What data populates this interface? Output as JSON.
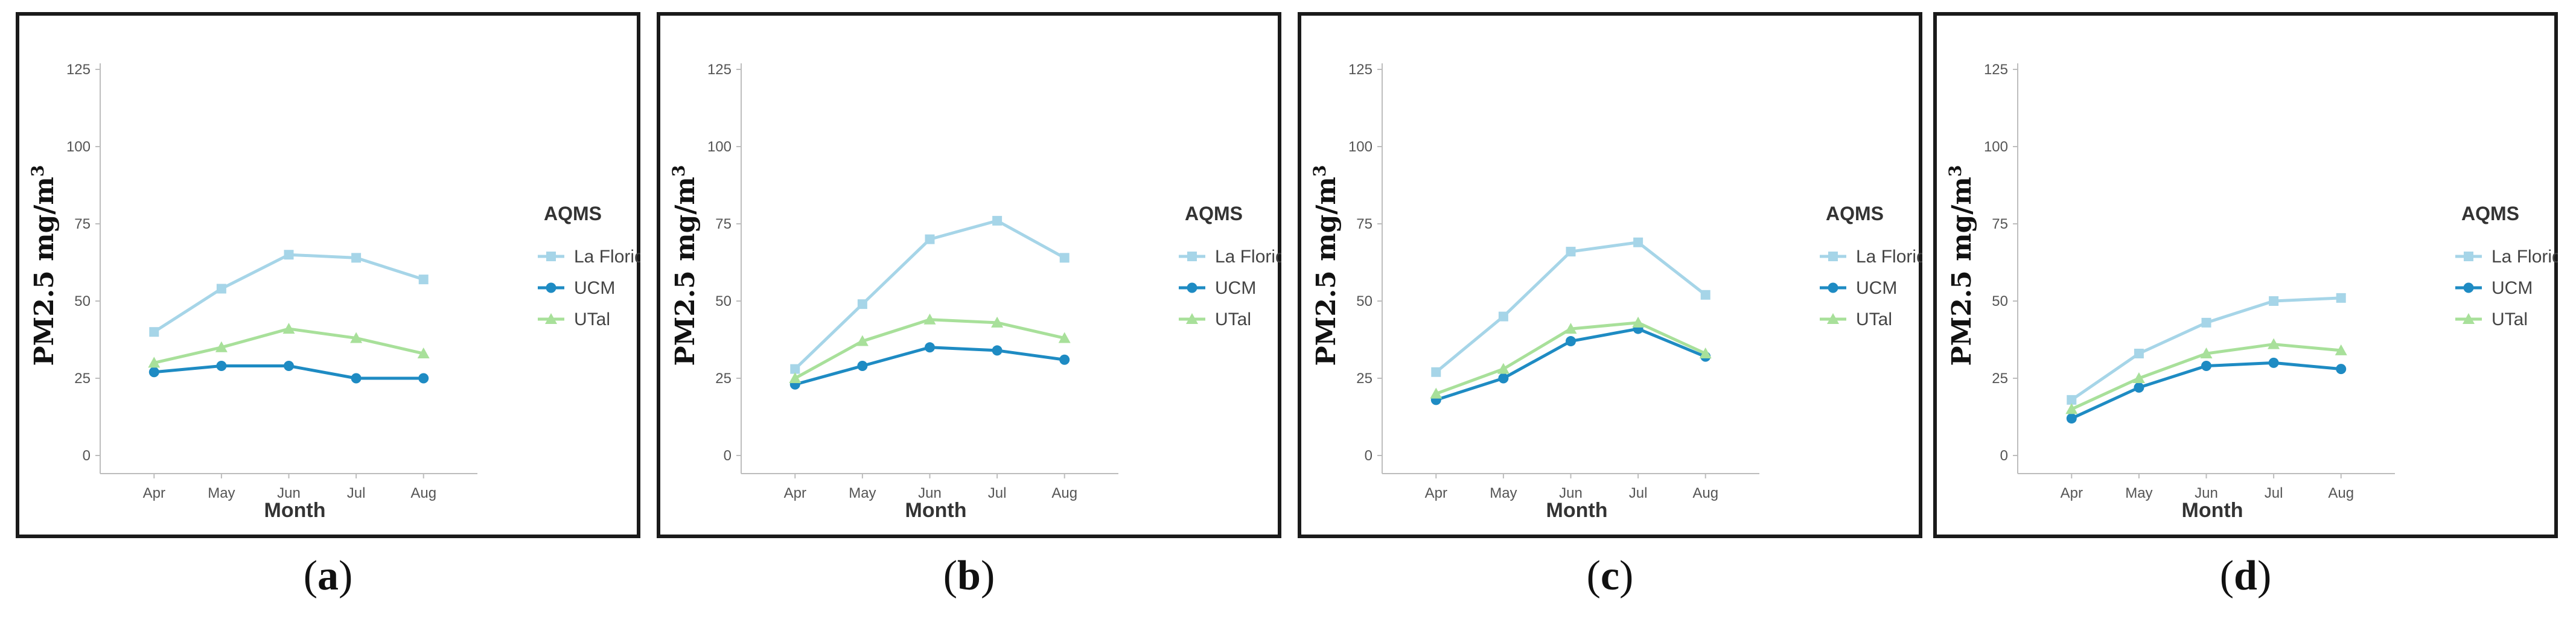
{
  "chart_data": [
    {
      "type": "line",
      "panel_label": "a",
      "ylabel": "PM2.5 mg/m",
      "ylabel_sup": "3",
      "xlabel": "Month",
      "categories": [
        "Apr",
        "May",
        "Jun",
        "Jul",
        "Aug"
      ],
      "yticks": [
        0,
        25,
        50,
        75,
        100,
        125
      ],
      "ylim": [
        0,
        125
      ],
      "legend": {
        "title": "AQMS",
        "position": "right"
      },
      "series": [
        {
          "name": "La Florida",
          "color": "#a6d5e8",
          "marker": "square",
          "values": [
            40,
            54,
            65,
            64,
            57
          ]
        },
        {
          "name": "UCM",
          "color": "#1e8bc3",
          "marker": "circle",
          "values": [
            27,
            29,
            29,
            25,
            25
          ]
        },
        {
          "name": "UTal",
          "color": "#a8e09a",
          "marker": "triangle",
          "values": [
            30,
            35,
            41,
            38,
            33
          ]
        }
      ]
    },
    {
      "type": "line",
      "panel_label": "b",
      "ylabel": "PM2.5 mg/m",
      "ylabel_sup": "3",
      "xlabel": "Month",
      "categories": [
        "Apr",
        "May",
        "Jun",
        "Jul",
        "Aug"
      ],
      "yticks": [
        0,
        25,
        50,
        75,
        100,
        125
      ],
      "ylim": [
        0,
        125
      ],
      "legend": {
        "title": "AQMS",
        "position": "right"
      },
      "series": [
        {
          "name": "La Florida",
          "color": "#a6d5e8",
          "marker": "square",
          "values": [
            28,
            49,
            70,
            76,
            64
          ]
        },
        {
          "name": "UCM",
          "color": "#1e8bc3",
          "marker": "circle",
          "values": [
            23,
            29,
            35,
            34,
            31
          ]
        },
        {
          "name": "UTal",
          "color": "#a8e09a",
          "marker": "triangle",
          "values": [
            25,
            37,
            44,
            43,
            38
          ]
        }
      ]
    },
    {
      "type": "line",
      "panel_label": "c",
      "ylabel": "PM2.5 mg/m",
      "ylabel_sup": "3",
      "xlabel": "Month",
      "categories": [
        "Apr",
        "May",
        "Jun",
        "Jul",
        "Aug"
      ],
      "yticks": [
        0,
        25,
        50,
        75,
        100,
        125
      ],
      "ylim": [
        0,
        125
      ],
      "legend": {
        "title": "AQMS",
        "position": "right"
      },
      "series": [
        {
          "name": "La Florida",
          "color": "#a6d5e8",
          "marker": "square",
          "values": [
            27,
            45,
            66,
            69,
            52
          ]
        },
        {
          "name": "UCM",
          "color": "#1e8bc3",
          "marker": "circle",
          "values": [
            18,
            25,
            37,
            41,
            32
          ]
        },
        {
          "name": "UTal",
          "color": "#a8e09a",
          "marker": "triangle",
          "values": [
            20,
            28,
            41,
            43,
            33
          ]
        }
      ]
    },
    {
      "type": "line",
      "panel_label": "d",
      "ylabel": "PM2.5 mg/m",
      "ylabel_sup": "3",
      "xlabel": "Month",
      "categories": [
        "Apr",
        "May",
        "Jun",
        "Jul",
        "Aug"
      ],
      "yticks": [
        0,
        25,
        50,
        75,
        100,
        125
      ],
      "ylim": [
        0,
        125
      ],
      "legend": {
        "title": "AQMS",
        "position": "right"
      },
      "series": [
        {
          "name": "La Florida",
          "color": "#a6d5e8",
          "marker": "square",
          "values": [
            18,
            33,
            43,
            50,
            51
          ]
        },
        {
          "name": "UCM",
          "color": "#1e8bc3",
          "marker": "circle",
          "values": [
            12,
            22,
            29,
            30,
            28
          ]
        },
        {
          "name": "UTal",
          "color": "#a8e09a",
          "marker": "triangle",
          "values": [
            15,
            25,
            33,
            36,
            34
          ]
        }
      ]
    }
  ]
}
